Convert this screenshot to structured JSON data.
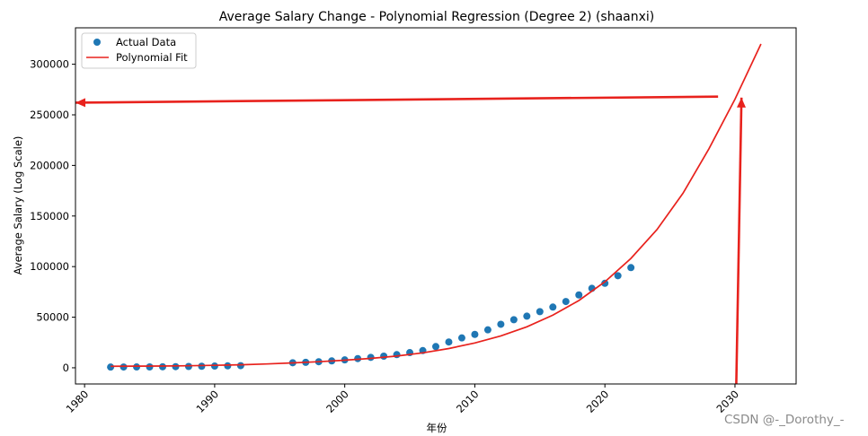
{
  "chart_data": {
    "type": "scatter",
    "title": "Average Salary Change - Polynomial Regression (Degree 2) (shaanxi)",
    "xlabel": "年份",
    "ylabel": "Average Salary (Log Scale)",
    "xlim": [
      1979.3,
      2034.7
    ],
    "ylim": [
      -16000,
      336000
    ],
    "xticks": [
      1980,
      1990,
      2000,
      2010,
      2020,
      2030
    ],
    "yticks": [
      0,
      50000,
      100000,
      150000,
      200000,
      250000,
      300000
    ],
    "x_tick_labels": [
      "1980",
      "1990",
      "2000",
      "2010",
      "2020",
      "2030"
    ],
    "y_tick_labels": [
      "0",
      "50000",
      "100000",
      "150000",
      "200000",
      "250000",
      "300000"
    ],
    "grid": false,
    "legend_position": "top-left",
    "series": [
      {
        "name": "Actual Data",
        "kind": "scatter",
        "color": "#1f77b4",
        "points": [
          [
            1982,
            700
          ],
          [
            1983,
            750
          ],
          [
            1984,
            800
          ],
          [
            1985,
            850
          ],
          [
            1986,
            1000
          ],
          [
            1987,
            1100
          ],
          [
            1988,
            1300
          ],
          [
            1989,
            1500
          ],
          [
            1990,
            1700
          ],
          [
            1991,
            1900
          ],
          [
            1992,
            2100
          ],
          [
            1996,
            5000
          ],
          [
            1997,
            5400
          ],
          [
            1998,
            6000
          ],
          [
            1999,
            6800
          ],
          [
            2000,
            7800
          ],
          [
            2001,
            9100
          ],
          [
            2002,
            10300
          ],
          [
            2003,
            11500
          ],
          [
            2004,
            13000
          ],
          [
            2005,
            15000
          ],
          [
            2006,
            17000
          ],
          [
            2007,
            21000
          ],
          [
            2008,
            25500
          ],
          [
            2009,
            29500
          ],
          [
            2010,
            33000
          ],
          [
            2011,
            37500
          ],
          [
            2012,
            43000
          ],
          [
            2013,
            47500
          ],
          [
            2014,
            51000
          ],
          [
            2015,
            55500
          ],
          [
            2016,
            60000
          ],
          [
            2017,
            65500
          ],
          [
            2018,
            72000
          ],
          [
            2019,
            78500
          ],
          [
            2020,
            83500
          ],
          [
            2021,
            91000
          ],
          [
            2022,
            99000
          ]
        ]
      },
      {
        "name": "Polynomial Fit",
        "kind": "line",
        "color": "#e8221d",
        "points": [
          [
            1982,
            1500
          ],
          [
            1984,
            1600
          ],
          [
            1986,
            1700
          ],
          [
            1988,
            2000
          ],
          [
            1990,
            2400
          ],
          [
            1992,
            3000
          ],
          [
            1994,
            3800
          ],
          [
            1996,
            4800
          ],
          [
            1998,
            6000
          ],
          [
            2000,
            7500
          ],
          [
            2002,
            9300
          ],
          [
            2004,
            11600
          ],
          [
            2006,
            14800
          ],
          [
            2008,
            19000
          ],
          [
            2010,
            24500
          ],
          [
            2012,
            31500
          ],
          [
            2014,
            40500
          ],
          [
            2016,
            52000
          ],
          [
            2018,
            66500
          ],
          [
            2020,
            85000
          ],
          [
            2022,
            108000
          ],
          [
            2024,
            136500
          ],
          [
            2026,
            172500
          ],
          [
            2028,
            216500
          ],
          [
            2030,
            265500
          ],
          [
            2032,
            320000
          ]
        ]
      }
    ],
    "annotations": [
      {
        "kind": "arrow",
        "color": "#e8221d",
        "from": [
          2030.1,
          -16000
        ],
        "to": [
          2030.5,
          267000
        ]
      },
      {
        "kind": "arrow",
        "color": "#e8221d",
        "from": [
          2028.7,
          268000
        ],
        "to": [
          1979.3,
          262000
        ]
      }
    ]
  },
  "watermark": "CSDN @-_Dorothy_-"
}
